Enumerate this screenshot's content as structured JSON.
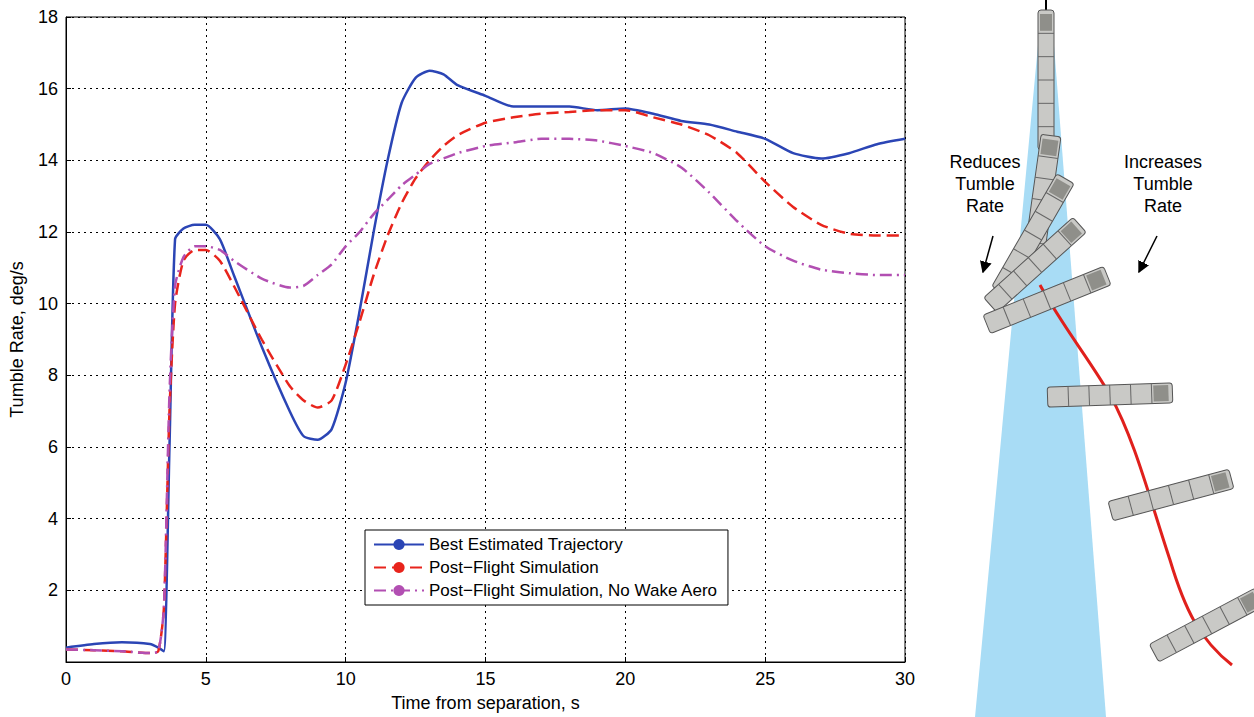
{
  "chart_data": {
    "type": "line",
    "x_label": "Time from separation, s",
    "y_label": "Tumble Rate, deg/s",
    "xlim": [
      0,
      30
    ],
    "xticks": [
      0,
      5,
      10,
      15,
      20,
      25,
      30
    ],
    "ylim": [
      0,
      18
    ],
    "yticks": [
      2,
      4,
      6,
      8,
      10,
      12,
      14,
      16,
      18
    ],
    "grid": true,
    "legend": "bottom",
    "x": [
      0,
      1,
      2,
      3,
      3.3,
      3.5,
      3.7,
      3.9,
      4.2,
      4.6,
      5,
      5.5,
      6,
      7,
      8,
      8.5,
      9,
      9.5,
      10,
      10.5,
      11,
      11.5,
      12,
      12.5,
      13,
      13.5,
      14,
      15,
      16,
      17,
      18,
      19,
      20,
      21,
      22,
      23,
      24,
      25,
      26,
      27,
      28,
      29,
      30
    ],
    "series": [
      {
        "name": "Best Estimated Trajectory",
        "color": "#2b45b5",
        "line_style": "solid",
        "values": [
          0.4,
          0.5,
          0.55,
          0.5,
          0.4,
          0.3,
          6,
          11.8,
          12.1,
          12.2,
          12.2,
          11.8,
          10.8,
          8.8,
          7,
          6.3,
          6.2,
          6.5,
          7.8,
          9.8,
          12,
          14,
          15.6,
          16.3,
          16.5,
          16.4,
          16.1,
          15.8,
          15.5,
          15.5,
          15.5,
          15.4,
          15.45,
          15.3,
          15.1,
          15,
          14.8,
          14.6,
          14.2,
          14.05,
          14.2,
          14.45,
          14.6
        ]
      },
      {
        "name": "Post−Flight Simulation",
        "color": "#e8241c",
        "line_style": "dashed",
        "values": [
          0.35,
          0.33,
          0.3,
          0.25,
          0.3,
          1.5,
          7,
          10,
          11.2,
          11.5,
          11.5,
          11.2,
          10.5,
          9,
          7.7,
          7.3,
          7.1,
          7.3,
          8.3,
          9.5,
          10.8,
          11.9,
          12.8,
          13.5,
          14,
          14.4,
          14.7,
          15.05,
          15.2,
          15.3,
          15.35,
          15.4,
          15.4,
          15.2,
          15,
          14.7,
          14.2,
          13.4,
          12.7,
          12.2,
          11.95,
          11.9,
          11.9
        ]
      },
      {
        "name": "Post−Flight Simulation, No Wake Aero",
        "color": "#b24fb2",
        "line_style": "dashdot",
        "values": [
          0.35,
          0.33,
          0.3,
          0.25,
          0.3,
          1.5,
          7.5,
          10.5,
          11.3,
          11.6,
          11.6,
          11.5,
          11.2,
          10.7,
          10.45,
          10.5,
          10.8,
          11.1,
          11.6,
          12,
          12.5,
          12.9,
          13.3,
          13.6,
          13.9,
          14.05,
          14.2,
          14.4,
          14.5,
          14.6,
          14.6,
          14.55,
          14.4,
          14.2,
          13.8,
          13.1,
          12.3,
          11.6,
          11.2,
          10.95,
          10.85,
          10.8,
          10.8
        ]
      }
    ],
    "annotations": [
      {
        "text": "Reduces Tumble Rate"
      },
      {
        "text": "Increases Tumble Rate"
      }
    ]
  }
}
